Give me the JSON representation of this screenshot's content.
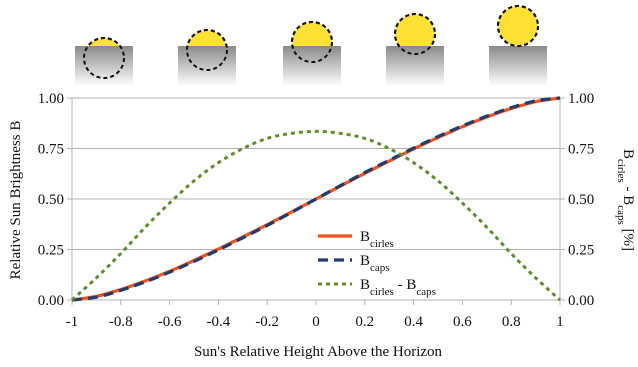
{
  "chart_data": {
    "type": "line",
    "title": "",
    "xlabel": "Sun's Relative Height Above the Horizon",
    "ylabel_left": "Relative Sun Brightness B",
    "ylabel_right": {
      "prefix": "B",
      "sub1": "cirles",
      "mid": " - B",
      "sub2": "caps",
      "suffix": " [%]"
    },
    "xlim": [
      -1,
      1
    ],
    "ylim_left": [
      0,
      1
    ],
    "ylim_right": [
      0,
      1
    ],
    "x_ticks": [
      "-1",
      "-0.8",
      "-0.6",
      "-0.4",
      "-0.2",
      "0",
      "0.2",
      "0.4",
      "0.6",
      "0.8",
      "1"
    ],
    "y_ticks_left": [
      "0.00",
      "0.25",
      "0.50",
      "0.75",
      "1.00"
    ],
    "y_ticks_right": [
      "0.00",
      "0.25",
      "0.50",
      "0.75",
      "1.00"
    ],
    "grid": "horizontal",
    "legend_position": "center-right",
    "x": [
      -1,
      -0.9,
      -0.8,
      -0.7,
      -0.6,
      -0.5,
      -0.4,
      -0.3,
      -0.2,
      -0.1,
      0,
      0.1,
      0.2,
      0.3,
      0.4,
      0.5,
      0.6,
      0.7,
      0.8,
      0.9,
      1
    ],
    "series": [
      {
        "label_main": "B",
        "label_sub": "cirles",
        "label_tail": "",
        "color": "#f4511e",
        "dash": "solid",
        "values": [
          0.0,
          0.018,
          0.052,
          0.094,
          0.142,
          0.196,
          0.252,
          0.312,
          0.373,
          0.436,
          0.5,
          0.564,
          0.627,
          0.688,
          0.748,
          0.804,
          0.858,
          0.906,
          0.948,
          0.982,
          1.0
        ]
      },
      {
        "label_main": "B",
        "label_sub": "caps",
        "label_tail": "",
        "color": "#1f3d6e",
        "dash": "dashed",
        "values": [
          0.0,
          0.014,
          0.048,
          0.09,
          0.138,
          0.191,
          0.248,
          0.308,
          0.369,
          0.434,
          0.5,
          0.566,
          0.631,
          0.692,
          0.752,
          0.809,
          0.862,
          0.91,
          0.952,
          0.986,
          1.0
        ]
      },
      {
        "label_main": "B",
        "label_sub": "cirles",
        "label_tail": " - B",
        "label_sub2": "caps",
        "color": "#5f8f2a",
        "dash": "dotted",
        "values": [
          0.0,
          0.11,
          0.23,
          0.36,
          0.48,
          0.59,
          0.68,
          0.75,
          0.8,
          0.825,
          0.835,
          0.825,
          0.8,
          0.75,
          0.68,
          0.59,
          0.48,
          0.36,
          0.23,
          0.11,
          0.0
        ]
      }
    ],
    "illustrations": {
      "count": 5,
      "sun_heights": [
        -0.6,
        -0.2,
        0.2,
        0.6,
        1.0
      ],
      "sun_color": "#ffe033",
      "horizon_color_top": "#8a8a8a",
      "horizon_color_bottom": "#ffffff"
    }
  }
}
